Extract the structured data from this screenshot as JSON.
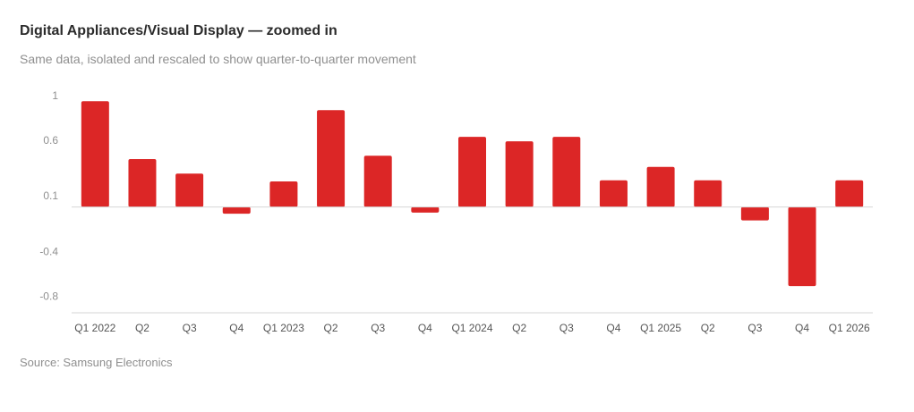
{
  "title": "Digital Appliances/Visual Display — zoomed in",
  "subtitle": "Same data, isolated and rescaled to show quarter-to-quarter movement",
  "source": "Source: Samsung Electronics",
  "colors": {
    "bar": "#dc2626",
    "axis": "#d6d6d6"
  },
  "chart_data": {
    "type": "bar",
    "categories": [
      "Q1 2022",
      "Q2",
      "Q3",
      "Q4",
      "Q1 2023",
      "Q2",
      "Q3",
      "Q4",
      "Q1 2024",
      "Q2",
      "Q3",
      "Q4",
      "Q1 2025",
      "Q2",
      "Q3",
      "Q4",
      "Q1 2026"
    ],
    "values": [
      0.95,
      0.43,
      0.3,
      -0.06,
      0.23,
      0.87,
      0.46,
      -0.05,
      0.63,
      0.59,
      0.63,
      0.24,
      0.36,
      0.24,
      -0.12,
      -0.71,
      0.24
    ],
    "yticks": [
      1,
      0.6,
      0.1,
      -0.4,
      -0.8
    ],
    "ytick_labels": [
      "1",
      "0.6",
      "0.1",
      "-0.4",
      "-0.8"
    ],
    "ylim": [
      -0.95,
      1.0
    ],
    "grid": false
  }
}
